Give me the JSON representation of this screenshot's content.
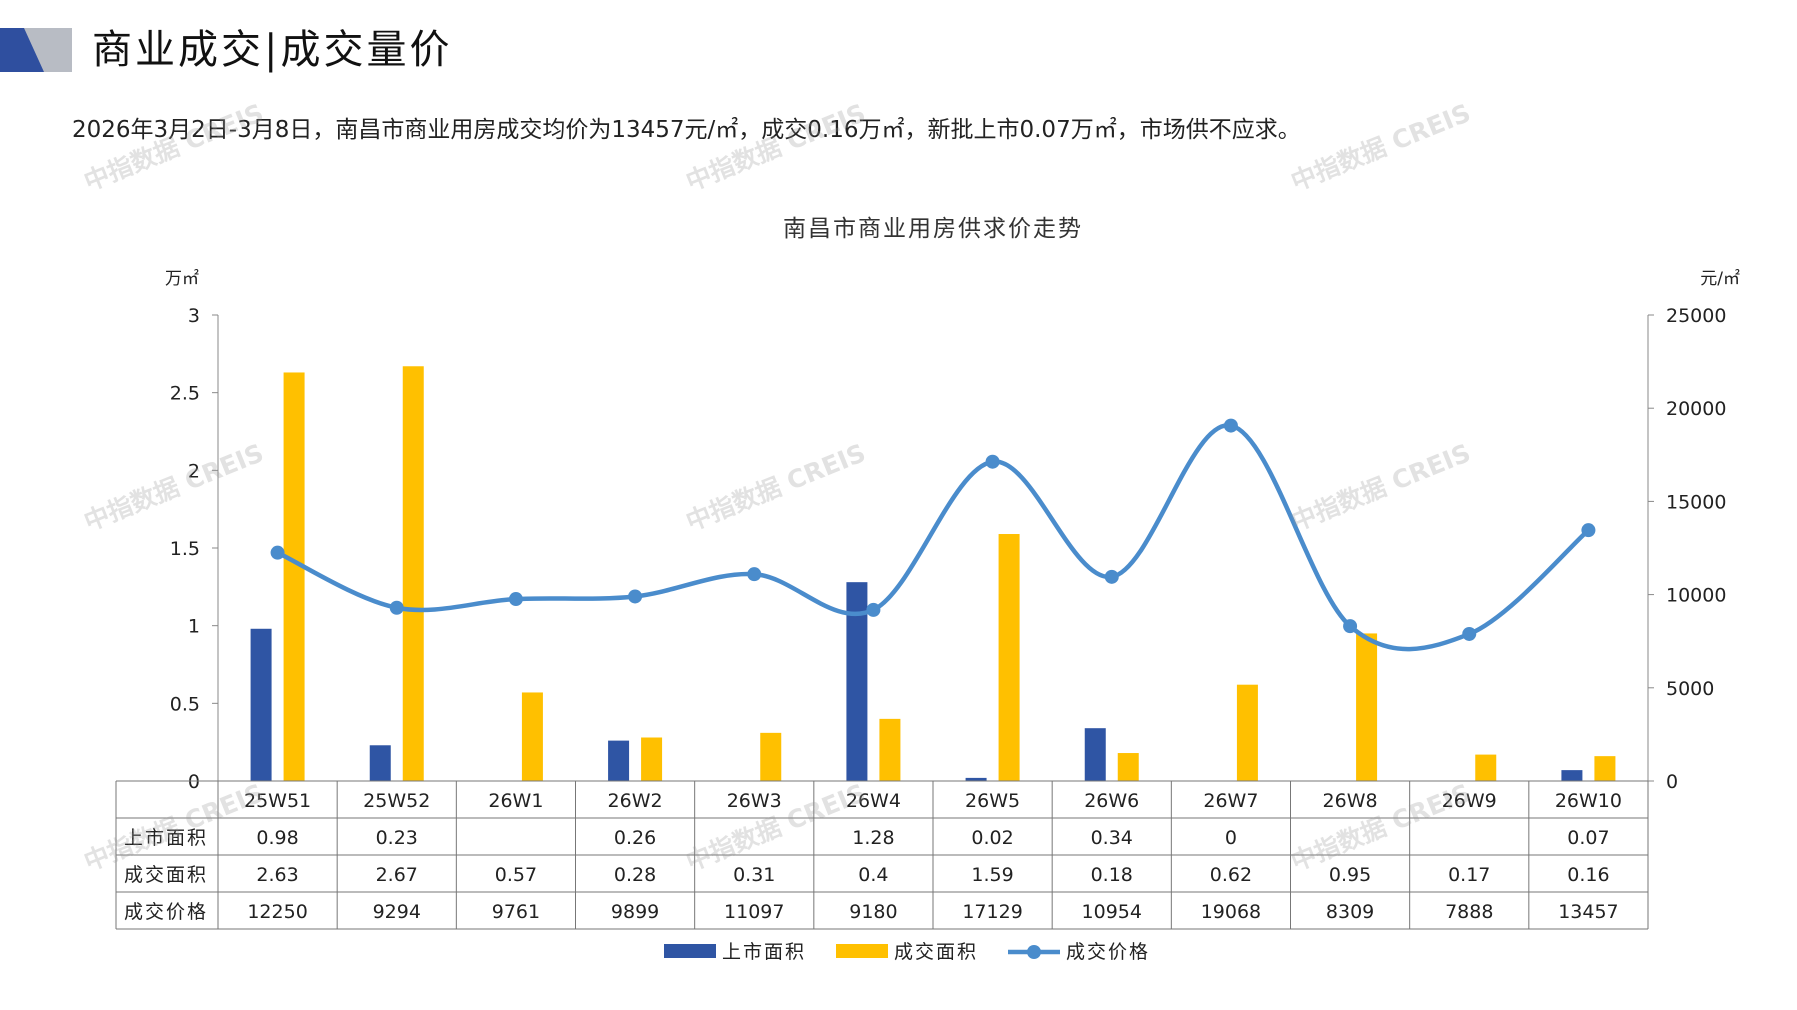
{
  "header": {
    "title": "商业成交|成交量价",
    "summary": "2026年3月2日-3月8日，南昌市商业用房成交均价为13457元/㎡，成交0.16万㎡，新批上市0.07万㎡，市场供不应求。"
  },
  "watermark": {
    "text": "中指数据 CREIS"
  },
  "colors": {
    "supply": "#2f55a4",
    "deal": "#ffc000",
    "price": "#4a8ccc",
    "deco_blue": "#2f4f9f",
    "deco_gray": "#b8bcc4"
  },
  "chart_data": {
    "type": "bar",
    "title": "南昌市商业用房供求价走势",
    "categories": [
      "25W51",
      "25W52",
      "26W1",
      "26W2",
      "26W3",
      "26W4",
      "26W5",
      "26W6",
      "26W7",
      "26W8",
      "26W9",
      "26W10"
    ],
    "y_left": {
      "unit": "万㎡",
      "min": 0,
      "max": 3,
      "ticks": [
        "0",
        "0.5",
        "1",
        "1.5",
        "2",
        "2.5",
        "3"
      ]
    },
    "y_right": {
      "unit": "元/㎡",
      "min": 0,
      "max": 25000,
      "ticks": [
        "0",
        "5000",
        "10000",
        "15000",
        "20000",
        "25000"
      ]
    },
    "series": [
      {
        "name": "上市面积",
        "type": "bar",
        "axis": "left",
        "values": [
          0.98,
          0.23,
          null,
          0.26,
          null,
          1.28,
          0.02,
          0.34,
          0,
          null,
          null,
          0.07
        ],
        "labels": [
          "0.98",
          "0.23",
          "",
          "0.26",
          "",
          "1.28",
          "0.02",
          "0.34",
          "0",
          "",
          "",
          "0.07"
        ]
      },
      {
        "name": "成交面积",
        "type": "bar",
        "axis": "left",
        "values": [
          2.63,
          2.67,
          0.57,
          0.28,
          0.31,
          0.4,
          1.59,
          0.18,
          0.62,
          0.95,
          0.17,
          0.16
        ],
        "labels": [
          "2.63",
          "2.67",
          "0.57",
          "0.28",
          "0.31",
          "0.4",
          "1.59",
          "0.18",
          "0.62",
          "0.95",
          "0.17",
          "0.16"
        ]
      },
      {
        "name": "成交价格",
        "type": "line",
        "axis": "right",
        "values": [
          12250,
          9294,
          9761,
          9899,
          11097,
          9180,
          17129,
          10954,
          19068,
          8309,
          7888,
          13457
        ],
        "labels": [
          "12250",
          "9294",
          "9761",
          "9899",
          "11097",
          "9180",
          "17129",
          "10954",
          "19068",
          "8309",
          "7888",
          "13457"
        ]
      }
    ],
    "legend": {
      "placement": "bottom"
    }
  }
}
